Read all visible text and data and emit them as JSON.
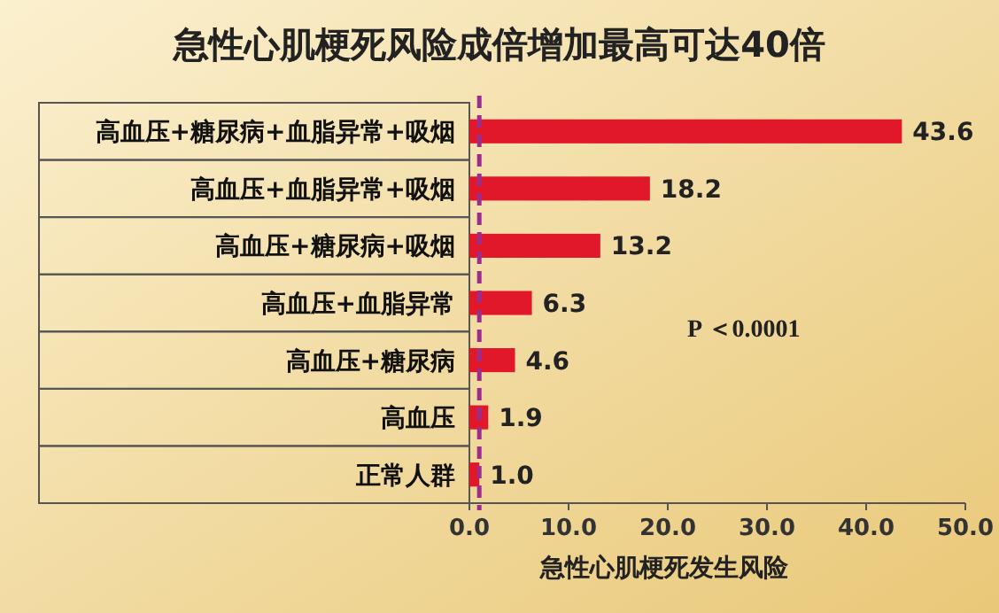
{
  "chart_data": {
    "type": "bar",
    "orientation": "horizontal",
    "title": "急性心肌梗死风险成倍增加最高可达40倍",
    "xlabel": "急性心肌梗死发生风险",
    "categories": [
      "高血压+糖尿病+血脂异常+吸烟",
      "高血压+血脂异常+吸烟",
      "高血压+糖尿病+吸烟",
      "高血压+血脂异常",
      "高血压+糖尿病",
      "高血压",
      "正常人群"
    ],
    "values": [
      43.6,
      18.2,
      13.2,
      6.3,
      4.6,
      1.9,
      1.0
    ],
    "color": "#e0182a",
    "value_labels": [
      "43.6",
      "18.2",
      "13.2",
      "6.3",
      "4.6",
      "1.9",
      "1.0"
    ],
    "xlim": [
      0,
      50
    ],
    "xticks": [
      {
        "value": 0,
        "label": "0.0"
      },
      {
        "value": 10,
        "label": "10.0"
      },
      {
        "value": 20,
        "label": "20.0"
      },
      {
        "value": 30,
        "label": "30.0"
      },
      {
        "value": 40,
        "label": "40.0"
      },
      {
        "value": 50,
        "label": "50.0"
      }
    ],
    "ref_lines": [
      {
        "axis": "x",
        "value": 1.0,
        "color": "#9b2d8e",
        "line_style": "dashed"
      }
    ],
    "annotations": [
      "P ＜0.0001"
    ]
  }
}
